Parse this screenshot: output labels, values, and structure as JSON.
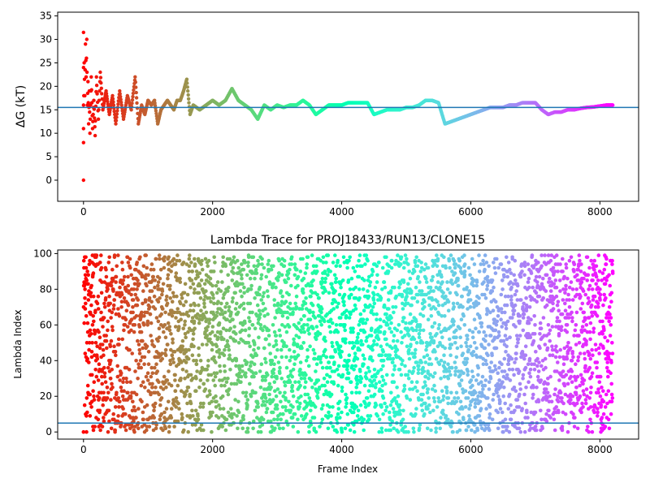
{
  "chart_data": [
    {
      "type": "scatter",
      "title": "",
      "xlabel": "",
      "ylabel": "ΔG (kT)",
      "xlim": [
        -400,
        8600
      ],
      "ylim": [
        -4.5,
        35.8
      ],
      "xticks": [
        0,
        2000,
        4000,
        6000,
        8000
      ],
      "yticks": [
        0,
        5,
        10,
        15,
        20,
        25,
        30,
        35
      ],
      "grid": false,
      "legend": "none",
      "colormap": "rainbow",
      "reference_line": 15.5,
      "reference_line_color": "#1f77b4",
      "marker_color_by": "frame index (red at frame 0 → purple at last frame)",
      "series": [
        {
          "x": [
            0,
            0,
            0,
            0,
            0,
            0,
            10,
            20,
            30,
            40,
            50,
            60,
            70,
            80,
            90,
            100,
            120,
            140,
            160,
            180,
            200,
            230,
            260,
            300,
            350,
            400,
            450,
            500,
            560,
            620,
            680,
            740,
            800,
            850,
            900,
            950,
            1000,
            1050,
            1100,
            1150,
            1200,
            1250,
            1300,
            1350,
            1400,
            1450,
            1500,
            1550,
            1600,
            1650,
            1700,
            1800,
            1900,
            2000,
            2100,
            2200,
            2300,
            2400,
            2500,
            2600,
            2700,
            2800,
            2900,
            3000,
            3100,
            3200,
            3300,
            3400,
            3500,
            3600,
            3700,
            3800,
            3900,
            4000,
            4100,
            4200,
            4300,
            4400,
            4500,
            4600,
            4700,
            4800,
            4900,
            5000,
            5100,
            5200,
            5300,
            5400,
            5500,
            5600,
            5700,
            5800,
            5900,
            6000,
            6100,
            6200,
            6300,
            6400,
            6500,
            6600,
            6700,
            6800,
            6900,
            7000,
            7100,
            7200,
            7300,
            7400,
            7500,
            7600,
            7700,
            7800,
            7900,
            8000,
            8100,
            8200
          ],
          "y": [
            31.5,
            0,
            24,
            8,
            16,
            11,
            25,
            18,
            29,
            22,
            30,
            16,
            21,
            12,
            19,
            10,
            22,
            11,
            17,
            9.5,
            22,
            13,
            23,
            15,
            19,
            14,
            18,
            12,
            19,
            13,
            18,
            15,
            22,
            12,
            16,
            14,
            17,
            16,
            17,
            12,
            15,
            16,
            17,
            16,
            15,
            17,
            17,
            19,
            21.5,
            14,
            16,
            15,
            16,
            17,
            16,
            17,
            19.5,
            17,
            16,
            15,
            13,
            16,
            15,
            16,
            15.5,
            16,
            16,
            17,
            16,
            14,
            15,
            16,
            16,
            16,
            16.5,
            16.5,
            16.5,
            16.5,
            14,
            14.5,
            15,
            15,
            15,
            15.5,
            15.5,
            16,
            17,
            17,
            16.5,
            12,
            12.5,
            13,
            13.5,
            14,
            14.5,
            15,
            15.5,
            15.5,
            15.5,
            16,
            16,
            16.5,
            16.5,
            16.5,
            15,
            14,
            14.5,
            14.5,
            15,
            15,
            15.3,
            15.5,
            15.6,
            15.8,
            16,
            16
          ]
        }
      ]
    },
    {
      "type": "scatter",
      "title": "Lambda Trace for PROJ18433/RUN13/CLONE15",
      "xlabel": "Frame Index",
      "ylabel": "Lambda Index",
      "xlim": [
        -400,
        8600
      ],
      "ylim": [
        -4,
        102
      ],
      "xticks": [
        0,
        2000,
        4000,
        6000,
        8000
      ],
      "yticks": [
        0,
        20,
        40,
        60,
        80,
        100
      ],
      "grid": false,
      "legend": "none",
      "colormap": "rainbow",
      "reference_line": 5,
      "reference_line_color": "#1f77b4",
      "marker_color_by": "frame index (red at frame 0 → purple at last frame)",
      "series": [
        {
          "x_range": [
            0,
            8200
          ],
          "y_range": [
            0,
            99
          ],
          "point_count_approx": 8200
        }
      ]
    }
  ]
}
